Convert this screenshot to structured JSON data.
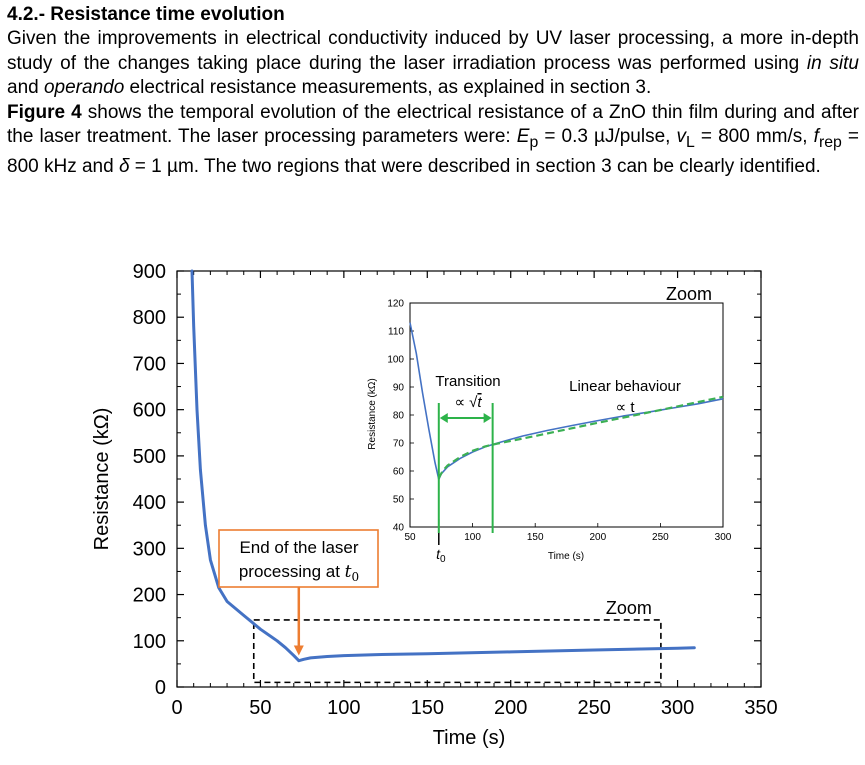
{
  "section": {
    "heading": "4.2.- Resistance time evolution",
    "para1": {
      "s1": "Given the improvements in electrical conductivity induced by UV laser processing, a more in-depth study of the changes taking place during the laser irradiation process was performed using ",
      "em1": "in situ",
      "s2": " and ",
      "em2": "operando",
      "s3": " electrical resistance measurements, as explained in section 3."
    },
    "para2": {
      "fig_ref": "Figure 4",
      "s1": " shows the temporal evolution of the electrical resistance of a ZnO thin film during and after the laser treatment. The laser processing parameters were: ",
      "ep_sym": "E",
      "ep_sub": "p",
      "ep_val": " = 0.3 µJ/pulse, ",
      "vl_sym": "v",
      "vl_sub": "L",
      "vl_val": " = 800 mm/s, ",
      "frep_sym": "f",
      "frep_sub": "rep",
      "frep_val": " = 800 kHz and ",
      "delta_sym": "δ",
      "delta_val": " = 1 µm. The two regions that were described in section 3 can be clearly identified."
    }
  },
  "chart_data": [
    {
      "type": "line",
      "xlabel": "Time (s)",
      "ylabel": "Resistance (kΩ)",
      "xlim": [
        0,
        350
      ],
      "ylim": [
        0,
        900
      ],
      "x_ticks": [
        "0",
        "50",
        "100",
        "150",
        "200",
        "250",
        "300",
        "350"
      ],
      "y_ticks": [
        "0",
        "100",
        "200",
        "300",
        "400",
        "500",
        "600",
        "700",
        "800",
        "900"
      ],
      "grid": false,
      "series_color": "#4472C4",
      "x": [
        9,
        10,
        12,
        14,
        17,
        20,
        25,
        30,
        40,
        50,
        60,
        65,
        70,
        73,
        76,
        80,
        90,
        100,
        120,
        150,
        200,
        250,
        300,
        310
      ],
      "y": [
        900,
        780,
        600,
        470,
        350,
        275,
        215,
        185,
        155,
        125,
        100,
        85,
        68,
        57,
        60,
        63,
        66,
        68,
        70,
        72,
        76,
        80,
        84,
        85
      ],
      "annotation": {
        "line1": "End of the laser",
        "line2": "processing at ",
        "t0_base": "t",
        "t0_sub": "0",
        "color": "#ED7D31",
        "arrow_x": 73
      },
      "zoom_label": "Zoom",
      "zoom_box": {
        "x": [
          46,
          290
        ],
        "y": [
          10,
          145
        ]
      }
    },
    {
      "type": "line",
      "title": "Zoom",
      "xlabel": "Time (s)",
      "ylabel": "Resistance (kΩ)",
      "xlim": [
        50,
        300
      ],
      "ylim": [
        40,
        120
      ],
      "x_ticks": [
        "50",
        "100",
        "150",
        "200",
        "250",
        "300"
      ],
      "y_ticks": [
        "40",
        "50",
        "60",
        "70",
        "80",
        "90",
        "100",
        "110",
        "120"
      ],
      "grid": false,
      "series": [
        {
          "style": "solid",
          "color": "#4472C4",
          "x": [
            50,
            55,
            60,
            65,
            70,
            73,
            75,
            80,
            90,
            100,
            110,
            120,
            140,
            160,
            180,
            200,
            220,
            240,
            260,
            280,
            300
          ],
          "y": [
            113,
            102,
            88,
            75,
            63,
            57,
            59,
            61.5,
            64.5,
            66.8,
            68.6,
            70,
            72.5,
            74.5,
            76.3,
            78,
            79.6,
            81,
            82.5,
            84,
            85.8
          ]
        },
        {
          "style": "dashed",
          "color": "#3CB054",
          "x": [
            73,
            76,
            80,
            90,
            100,
            110,
            120,
            150,
            200,
            250,
            300
          ],
          "y": [
            57.5,
            60,
            62,
            65,
            67.2,
            68.8,
            69.8,
            72.5,
            77.2,
            81.8,
            86.5
          ]
        }
      ],
      "t0_label": {
        "base": "t",
        "sub": "0",
        "x": 73
      },
      "transition": {
        "label": "Transition",
        "prop_sym": "∝",
        "sqrt_sym": "√",
        "sqrt_arg": "t",
        "color": "#2DB34A",
        "x_start": 73,
        "x_end": 116
      },
      "linear": {
        "label": "Linear behaviour",
        "prop": "∝ t"
      }
    }
  ]
}
